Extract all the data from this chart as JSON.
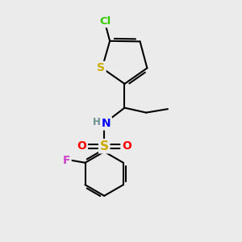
{
  "background_color": "#ebebeb",
  "atom_colors": {
    "C": "#000000",
    "H": "#6a8f8f",
    "N": "#0000ff",
    "O": "#ff0000",
    "S_sul": "#ccaa00",
    "S_th": "#ccaa00",
    "Cl": "#33cc00",
    "F": "#cc44cc"
  },
  "bond_color": "#000000",
  "bond_width": 1.5,
  "fig_width": 3.0,
  "fig_height": 3.0,
  "dpi": 100
}
